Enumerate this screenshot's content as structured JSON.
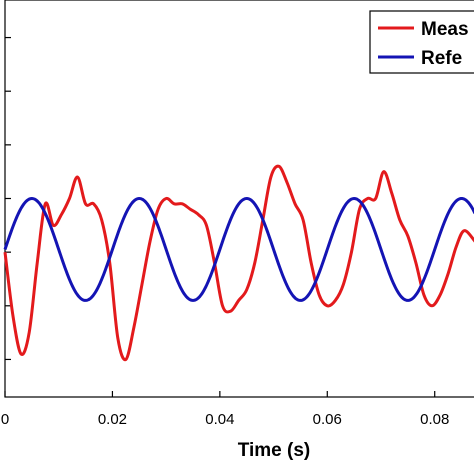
{
  "chart_data": {
    "type": "line",
    "xlabel": "Time (s)",
    "xlim": [
      0,
      0.0875
    ],
    "ylim": [
      -1.35,
      2.35
    ],
    "x_ticks": [
      0,
      0.02,
      0.04,
      0.06,
      0.08
    ],
    "x_tick_labels": [
      "0",
      "0.02",
      "0.04",
      "0.06",
      "0.08"
    ],
    "y_ticks": [
      -1,
      -0.5,
      0,
      0.5,
      1,
      1.5,
      2
    ],
    "legend": {
      "placement": "top-right",
      "entries": [
        "Meas",
        "Refe"
      ]
    },
    "series": [
      {
        "name": "Meas",
        "color": "#e31a1c",
        "x": [
          0,
          0.0015,
          0.003,
          0.0045,
          0.006,
          0.0075,
          0.009,
          0.0105,
          0.012,
          0.0135,
          0.015,
          0.0165,
          0.018,
          0.0195,
          0.021,
          0.0225,
          0.024,
          0.0255,
          0.027,
          0.0285,
          0.03,
          0.0315,
          0.033,
          0.0345,
          0.036,
          0.0375,
          0.039,
          0.0405,
          0.042,
          0.0435,
          0.045,
          0.0465,
          0.048,
          0.0495,
          0.051,
          0.0525,
          0.054,
          0.0555,
          0.057,
          0.0585,
          0.06,
          0.0615,
          0.063,
          0.0645,
          0.066,
          0.0675,
          0.069,
          0.0705,
          0.072,
          0.0735,
          0.075,
          0.0765,
          0.078,
          0.0795,
          0.081,
          0.0825,
          0.084,
          0.0855,
          0.0875
        ],
        "y": [
          0,
          -0.6,
          -0.95,
          -0.75,
          -0.1,
          0.45,
          0.25,
          0.35,
          0.5,
          0.7,
          0.45,
          0.45,
          0.3,
          -0.1,
          -0.8,
          -1.0,
          -0.7,
          -0.3,
          0.1,
          0.4,
          0.5,
          0.45,
          0.45,
          0.4,
          0.35,
          0.25,
          -0.1,
          -0.5,
          -0.55,
          -0.45,
          -0.35,
          -0.1,
          0.3,
          0.7,
          0.8,
          0.65,
          0.45,
          0.3,
          -0.1,
          -0.4,
          -0.5,
          -0.45,
          -0.3,
          0.0,
          0.4,
          0.5,
          0.5,
          0.75,
          0.55,
          0.3,
          0.15,
          -0.1,
          -0.4,
          -0.5,
          -0.4,
          -0.2,
          0.05,
          0.2,
          0.1
        ]
      },
      {
        "name": "Refe",
        "color": "#1414b4",
        "x": [
          0,
          0.0875
        ],
        "y": [
          0,
          0
        ],
        "model": "sine",
        "amplitude": 0.475,
        "period": 0.02,
        "phase_offset": -0.01,
        "offset": 0.025
      }
    ]
  }
}
